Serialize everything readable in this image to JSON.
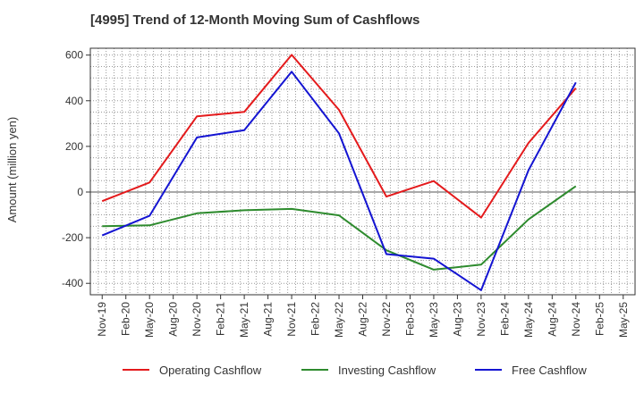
{
  "chart_data": {
    "type": "line",
    "title": "[4995]  Trend of 12-Month Moving Sum of Cashflows",
    "xlabel": "",
    "ylabel": "Amount (million yen)",
    "ylim": [
      -450,
      630
    ],
    "yticks": [
      600,
      400,
      200,
      0,
      -200,
      -400
    ],
    "grid": true,
    "legend_position": "bottom",
    "categories": [
      "Nov-19",
      "Feb-20",
      "May-20",
      "Aug-20",
      "Nov-20",
      "Feb-21",
      "May-21",
      "Aug-21",
      "Nov-21",
      "Feb-22",
      "May-22",
      "Aug-22",
      "Nov-22",
      "Feb-23",
      "May-23",
      "Aug-23",
      "Nov-23",
      "Feb-24",
      "May-24",
      "Aug-24",
      "Nov-24",
      "Feb-25",
      "May-25"
    ],
    "series": [
      {
        "name": "Operating Cashflow",
        "color": "#e41a1c",
        "points": [
          {
            "x": "Nov-19",
            "y": -40
          },
          {
            "x": "May-20",
            "y": 42
          },
          {
            "x": "Nov-20",
            "y": 332
          },
          {
            "x": "May-21",
            "y": 351
          },
          {
            "x": "Nov-21",
            "y": 601
          },
          {
            "x": "May-22",
            "y": 360
          },
          {
            "x": "Nov-22",
            "y": -20
          },
          {
            "x": "May-23",
            "y": 48
          },
          {
            "x": "Nov-23",
            "y": -112
          },
          {
            "x": "May-24",
            "y": 215
          },
          {
            "x": "Nov-24",
            "y": 455
          }
        ]
      },
      {
        "name": "Investing Cashflow",
        "color": "#2e8b2e",
        "points": [
          {
            "x": "Nov-19",
            "y": -150
          },
          {
            "x": "May-20",
            "y": -146
          },
          {
            "x": "Nov-20",
            "y": -93
          },
          {
            "x": "May-21",
            "y": -80
          },
          {
            "x": "Nov-21",
            "y": -74
          },
          {
            "x": "May-22",
            "y": -102
          },
          {
            "x": "Nov-22",
            "y": -255
          },
          {
            "x": "May-23",
            "y": -340
          },
          {
            "x": "Nov-23",
            "y": -318
          },
          {
            "x": "May-24",
            "y": -120
          },
          {
            "x": "Nov-24",
            "y": 26
          }
        ]
      },
      {
        "name": "Free Cashflow",
        "color": "#1414d2",
        "points": [
          {
            "x": "Nov-19",
            "y": -190
          },
          {
            "x": "May-20",
            "y": -104
          },
          {
            "x": "Nov-20",
            "y": 239
          },
          {
            "x": "May-21",
            "y": 271
          },
          {
            "x": "Nov-21",
            "y": 527
          },
          {
            "x": "May-22",
            "y": 257
          },
          {
            "x": "Nov-22",
            "y": -272
          },
          {
            "x": "May-23",
            "y": -292
          },
          {
            "x": "Nov-23",
            "y": -430
          },
          {
            "x": "May-24",
            "y": 95
          },
          {
            "x": "Nov-24",
            "y": 480
          }
        ]
      }
    ]
  }
}
